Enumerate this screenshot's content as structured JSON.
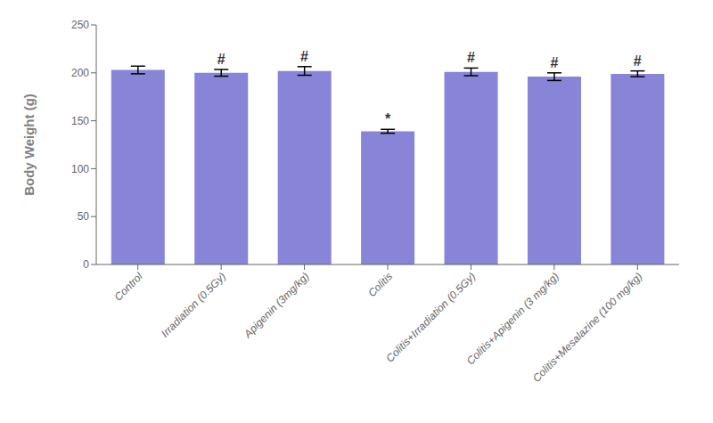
{
  "chart_data": {
    "type": "bar",
    "categories": [
      "Control",
      "Irradiation (0.5Gy)",
      "Apigenin (3mg/kg)",
      "Colitis",
      "Colitis+Irradiation (0.5Gy)",
      "Colitis+Apigenin (3 mg/kg)",
      "Colitis+Mesalazine (100 mg/kg)"
    ],
    "values": [
      203,
      200,
      202,
      139,
      201,
      196,
      199
    ],
    "errors": [
      4,
      3.5,
      4.5,
      2,
      4,
      4,
      3
    ],
    "ylabel": "Body Weight (g)",
    "ylim": [
      0,
      250
    ],
    "yticks": [
      0,
      50,
      100,
      150,
      200,
      250
    ],
    "color": "#8884d8",
    "grid": false,
    "annotations": [
      {
        "category": "Irradiation (0.5Gy)",
        "text": "#"
      },
      {
        "category": "Apigenin (3mg/kg)",
        "text": "#"
      },
      {
        "category": "Colitis",
        "text": "*"
      },
      {
        "category": "Colitis+Irradiation (0.5Gy)",
        "text": "#"
      },
      {
        "category": "Colitis+Apigenin (3 mg/kg)",
        "text": "#"
      },
      {
        "category": "Colitis+Mesalazine (100 mg/kg)",
        "text": "#"
      }
    ]
  }
}
